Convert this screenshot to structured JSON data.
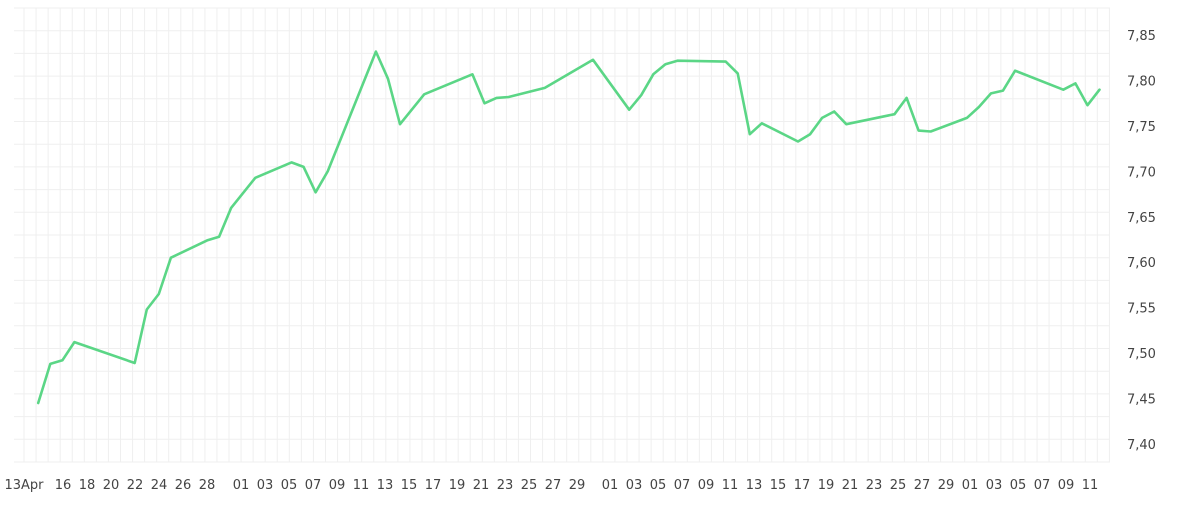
{
  "chart_data": {
    "type": "line",
    "x_tick_labels": [
      "13Apr",
      "16",
      "18",
      "20",
      "22",
      "24",
      "26",
      "28",
      "01",
      "03",
      "05",
      "07",
      "09",
      "11",
      "13",
      "15",
      "17",
      "19",
      "21",
      "23",
      "25",
      "27",
      "29",
      "01",
      "03",
      "05",
      "07",
      "09",
      "11",
      "13",
      "15",
      "17",
      "19",
      "21",
      "23",
      "25",
      "27",
      "29",
      "01",
      "03",
      "05",
      "07",
      "09",
      "11"
    ],
    "y_ticks": [
      "7,40",
      "7,45",
      "7,50",
      "7,55",
      "7,60",
      "7,65",
      "7,70",
      "7,75",
      "7,80",
      "7,85"
    ],
    "ylim": [
      7.38,
      7.88
    ],
    "grid": true,
    "series": [
      {
        "color": "#5bd686",
        "x": [
          "2024-04-14",
          "2024-04-15",
          "2024-04-16",
          "2024-04-17",
          "2024-04-22",
          "2024-04-23",
          "2024-04-24",
          "2024-04-25",
          "2024-04-28",
          "2024-04-29",
          "2024-04-30",
          "2024-05-02",
          "2024-05-05",
          "2024-05-06",
          "2024-05-07",
          "2024-05-08",
          "2024-05-12",
          "2024-05-13",
          "2024-05-14",
          "2024-05-16",
          "2024-05-20",
          "2024-05-21",
          "2024-05-22",
          "2024-05-23",
          "2024-05-26",
          "2024-05-30",
          "2024-06-02",
          "2024-06-03",
          "2024-06-04",
          "2024-06-05",
          "2024-06-06",
          "2024-06-10",
          "2024-06-11",
          "2024-06-12",
          "2024-06-13",
          "2024-06-16",
          "2024-06-17",
          "2024-06-18",
          "2024-06-19",
          "2024-06-20",
          "2024-06-24",
          "2024-06-25",
          "2024-06-26",
          "2024-06-27",
          "2024-06-30",
          "2024-07-01",
          "2024-07-02",
          "2024-07-03",
          "2024-07-04",
          "2024-07-08",
          "2024-07-09",
          "2024-07-10",
          "2024-07-11"
        ],
        "y": [
          7.445,
          7.488,
          7.492,
          7.512,
          7.489,
          7.548,
          7.565,
          7.605,
          7.624,
          7.628,
          7.66,
          7.693,
          7.71,
          7.705,
          7.677,
          7.7,
          7.832,
          7.802,
          7.752,
          7.785,
          7.807,
          7.775,
          7.781,
          7.782,
          7.792,
          7.823,
          7.768,
          7.784,
          7.807,
          7.818,
          7.822,
          7.821,
          7.808,
          7.741,
          7.753,
          7.733,
          7.741,
          7.759,
          7.766,
          7.752,
          7.763,
          7.781,
          7.745,
          7.744,
          7.759,
          7.771,
          7.786,
          7.789,
          7.811,
          7.79,
          7.797,
          7.773,
          7.79
        ]
      }
    ]
  }
}
